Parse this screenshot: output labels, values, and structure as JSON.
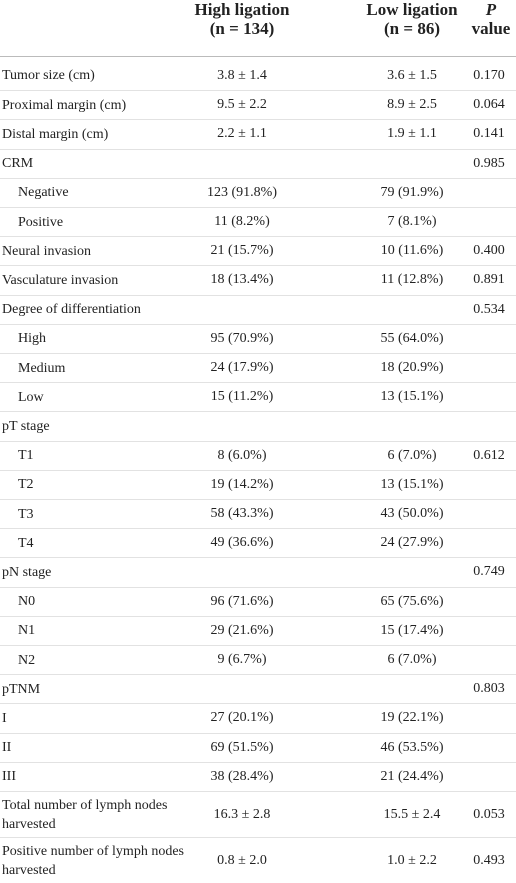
{
  "table": {
    "header": {
      "high": {
        "title": "High ligation",
        "n": "(n = 134)"
      },
      "low": {
        "title": "Low ligation",
        "n": "(n = 86)"
      },
      "p": {
        "symbol": "P",
        "word": "value"
      }
    },
    "rows": [
      {
        "label": "Tumor size (cm)",
        "high": "3.8 ± 1.4",
        "low": "3.6 ± 1.5",
        "p": "0.170"
      },
      {
        "label": "Proximal margin (cm)",
        "high": "9.5 ± 2.2",
        "low": "8.9 ± 2.5",
        "p": "0.064"
      },
      {
        "label": "Distal margin (cm)",
        "high": "2.2 ± 1.1",
        "low": "1.9 ± 1.1",
        "p": "0.141"
      },
      {
        "label": "CRM",
        "p": "0.985",
        "subrows": [
          {
            "label": "Negative",
            "high": "123 (91.8%)",
            "low": "79 (91.9%)"
          },
          {
            "label": "Positive",
            "high": "11 (8.2%)",
            "low": "7 (8.1%)"
          }
        ]
      },
      {
        "label": "Neural invasion",
        "high": "21 (15.7%)",
        "low": "10 (11.6%)",
        "p": "0.400"
      },
      {
        "label": "Vasculature invasion",
        "high": "18 (13.4%)",
        "low": "11 (12.8%)",
        "p": "0.891"
      },
      {
        "label": "Degree of differentiation",
        "p": "0.534",
        "subrows": [
          {
            "label": "High",
            "high": "95 (70.9%)",
            "low": "55 (64.0%)"
          },
          {
            "label": "Medium",
            "high": "24 (17.9%)",
            "low": "18 (20.9%)"
          },
          {
            "label": "Low",
            "high": "15 (11.2%)",
            "low": "13 (15.1%)"
          }
        ]
      },
      {
        "label": "pT stage",
        "subrows": [
          {
            "label": "T1",
            "high": "8 (6.0%)",
            "low": "6 (7.0%)",
            "p": "0.612"
          },
          {
            "label": "T2",
            "high": "19 (14.2%)",
            "low": "13 (15.1%)"
          },
          {
            "label": "T3",
            "high": "58 (43.3%)",
            "low": "43 (50.0%)"
          },
          {
            "label": "T4",
            "high": "49 (36.6%)",
            "low": "24 (27.9%)"
          }
        ]
      },
      {
        "label": "pN stage",
        "p": "0.749",
        "subrows": [
          {
            "label": "N0",
            "high": "96 (71.6%)",
            "low": "65 (75.6%)"
          },
          {
            "label": "N1",
            "high": "29 (21.6%)",
            "low": "15 (17.4%)"
          },
          {
            "label": "N2",
            "high": "9 (6.7%)",
            "low": "6 (7.0%)"
          }
        ]
      },
      {
        "label": "pTNM",
        "p": "0.803"
      },
      {
        "label": "I",
        "high": "27 (20.1%)",
        "low": "19 (22.1%)"
      },
      {
        "label": "II",
        "high": "69 (51.5%)",
        "low": "46 (53.5%)"
      },
      {
        "label": "III",
        "high": "38 (28.4%)",
        "low": "21 (24.4%)"
      },
      {
        "label": "Total number of lymph nodes harvested",
        "high": "16.3 ± 2.8",
        "low": "15.5 ± 2.4",
        "p": "0.053"
      },
      {
        "label": "Positive number of lymph nodes harvested",
        "high": "0.8 ± 2.0",
        "low": "1.0 ± 2.2",
        "p": "0.493"
      }
    ]
  }
}
